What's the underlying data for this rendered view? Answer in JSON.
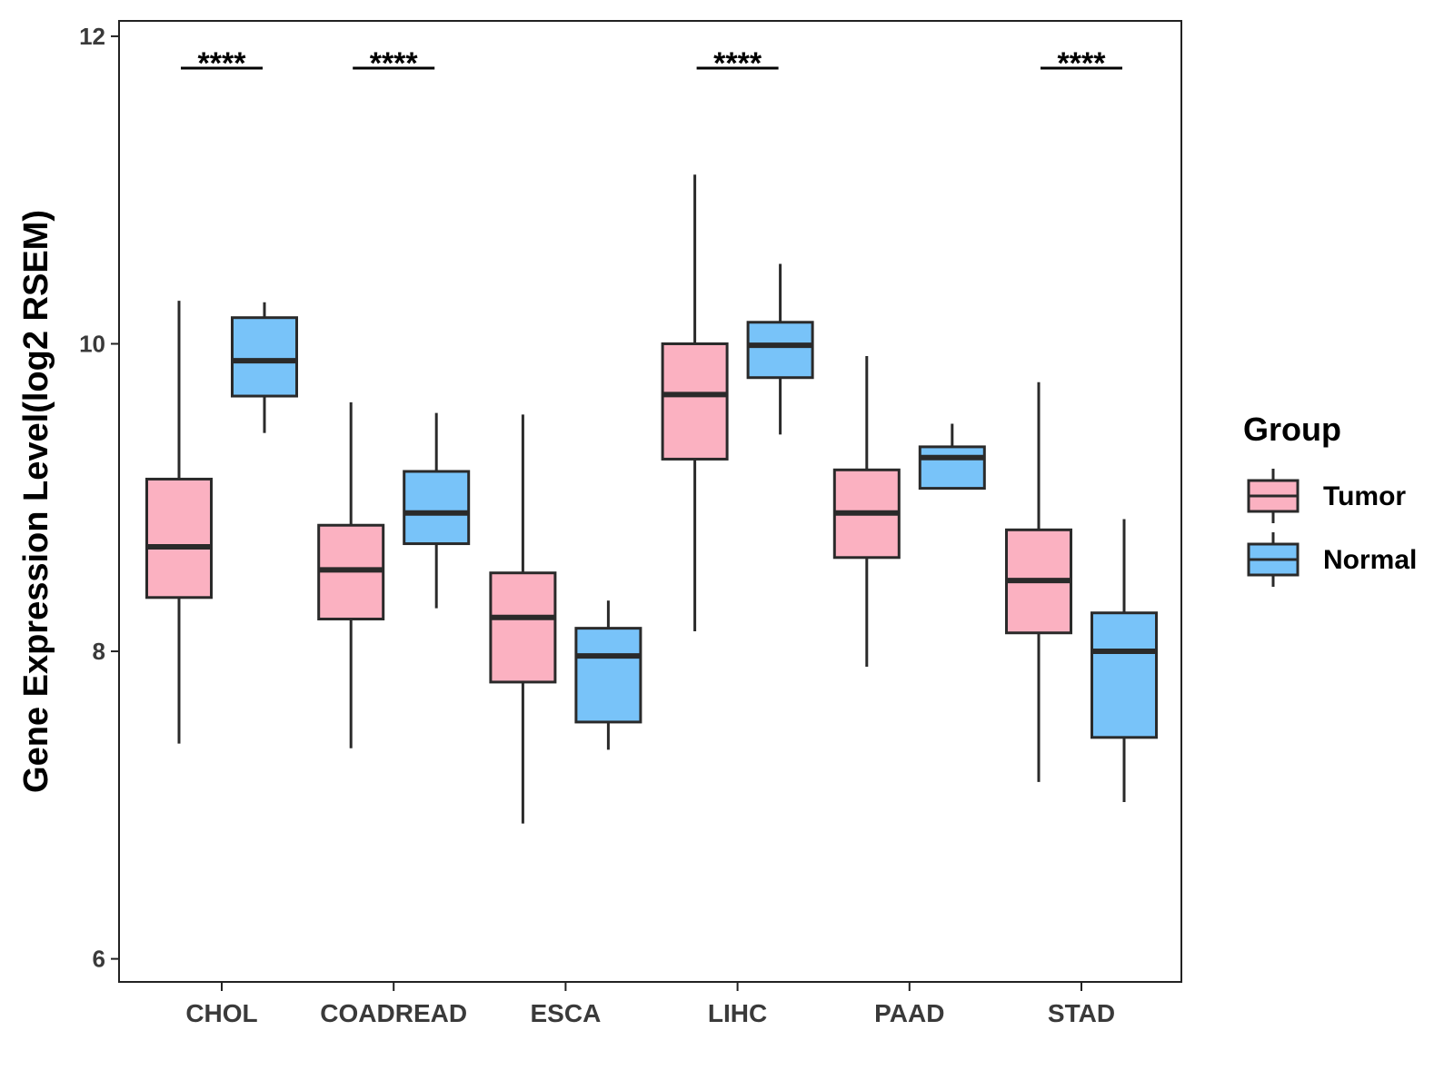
{
  "chart_data": {
    "type": "boxplot",
    "title": "",
    "xlabel": "",
    "ylabel": "Gene Expression Level(log2 RSEM)",
    "ylim": [
      5.85,
      12.1
    ],
    "yticks": [
      "6",
      "8",
      "10",
      "12"
    ],
    "categories": [
      "CHOL",
      "COADREAD",
      "ESCA",
      "LIHC",
      "PAAD",
      "STAD"
    ],
    "legend": {
      "title": "Group",
      "position": "right",
      "entries": [
        "Tumor",
        "Normal"
      ]
    },
    "colors": {
      "Tumor": "#fbb1c1",
      "Normal": "#78c3f9",
      "outline": "#2a2a2a"
    },
    "series": [
      {
        "name": "Tumor",
        "boxes": [
          {
            "min": 7.4,
            "q1": 8.35,
            "median": 8.68,
            "q3": 9.12,
            "max": 10.28
          },
          {
            "min": 7.37,
            "q1": 8.21,
            "median": 8.53,
            "q3": 8.82,
            "max": 9.62
          },
          {
            "min": 6.88,
            "q1": 7.8,
            "median": 8.22,
            "q3": 8.51,
            "max": 9.54
          },
          {
            "min": 8.13,
            "q1": 9.25,
            "median": 9.67,
            "q3": 10.0,
            "max": 11.1
          },
          {
            "min": 7.9,
            "q1": 8.61,
            "median": 8.9,
            "q3": 9.18,
            "max": 9.92
          },
          {
            "min": 7.15,
            "q1": 8.12,
            "median": 8.46,
            "q3": 8.79,
            "max": 9.75
          }
        ]
      },
      {
        "name": "Normal",
        "boxes": [
          {
            "min": 9.42,
            "q1": 9.66,
            "median": 9.89,
            "q3": 10.17,
            "max": 10.27
          },
          {
            "min": 8.28,
            "q1": 8.7,
            "median": 8.9,
            "q3": 9.17,
            "max": 9.55
          },
          {
            "min": 7.36,
            "q1": 7.54,
            "median": 7.97,
            "q3": 8.15,
            "max": 8.33
          },
          {
            "min": 9.41,
            "q1": 9.78,
            "median": 9.99,
            "q3": 10.14,
            "max": 10.52
          },
          {
            "min": 9.06,
            "q1": 9.06,
            "median": 9.26,
            "q3": 9.33,
            "max": 9.48
          },
          {
            "min": 7.02,
            "q1": 7.44,
            "median": 8.0,
            "q3": 8.25,
            "max": 8.86
          }
        ]
      }
    ],
    "significance": [
      {
        "category": "CHOL",
        "label": "****"
      },
      {
        "category": "COADREAD",
        "label": "****"
      },
      {
        "category": "LIHC",
        "label": "****"
      },
      {
        "category": "STAD",
        "label": "****"
      }
    ],
    "grid": false
  }
}
